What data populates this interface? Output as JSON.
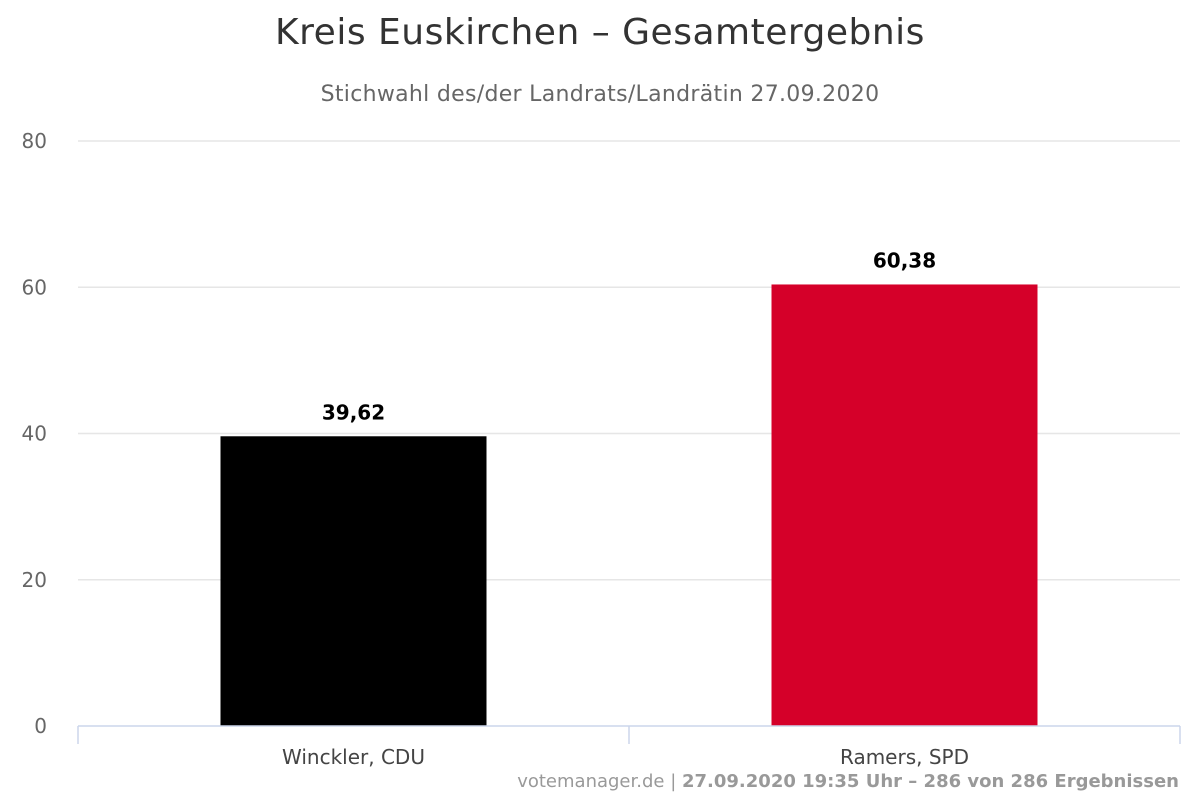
{
  "title": "Kreis Euskirchen – Gesamtergebnis",
  "subtitle": "Stichwahl des/der Landrats/Landrätin 27.09.2020",
  "credits": {
    "site": "votemanager.de",
    "separator": " | ",
    "info": "27.09.2020 19:35 Uhr – 286 von 286 Ergebnissen"
  },
  "chart_data": {
    "type": "bar",
    "categories": [
      "Winckler, CDU",
      "Ramers, SPD"
    ],
    "values": [
      39.62,
      60.38
    ],
    "value_labels": [
      "39,62",
      "60,38"
    ],
    "colors": [
      "#000000",
      "#d50029"
    ],
    "ylim": [
      0,
      80
    ],
    "yticks": [
      0,
      20,
      40,
      60,
      80
    ],
    "grid": true,
    "xlabel": "",
    "ylabel": ""
  }
}
